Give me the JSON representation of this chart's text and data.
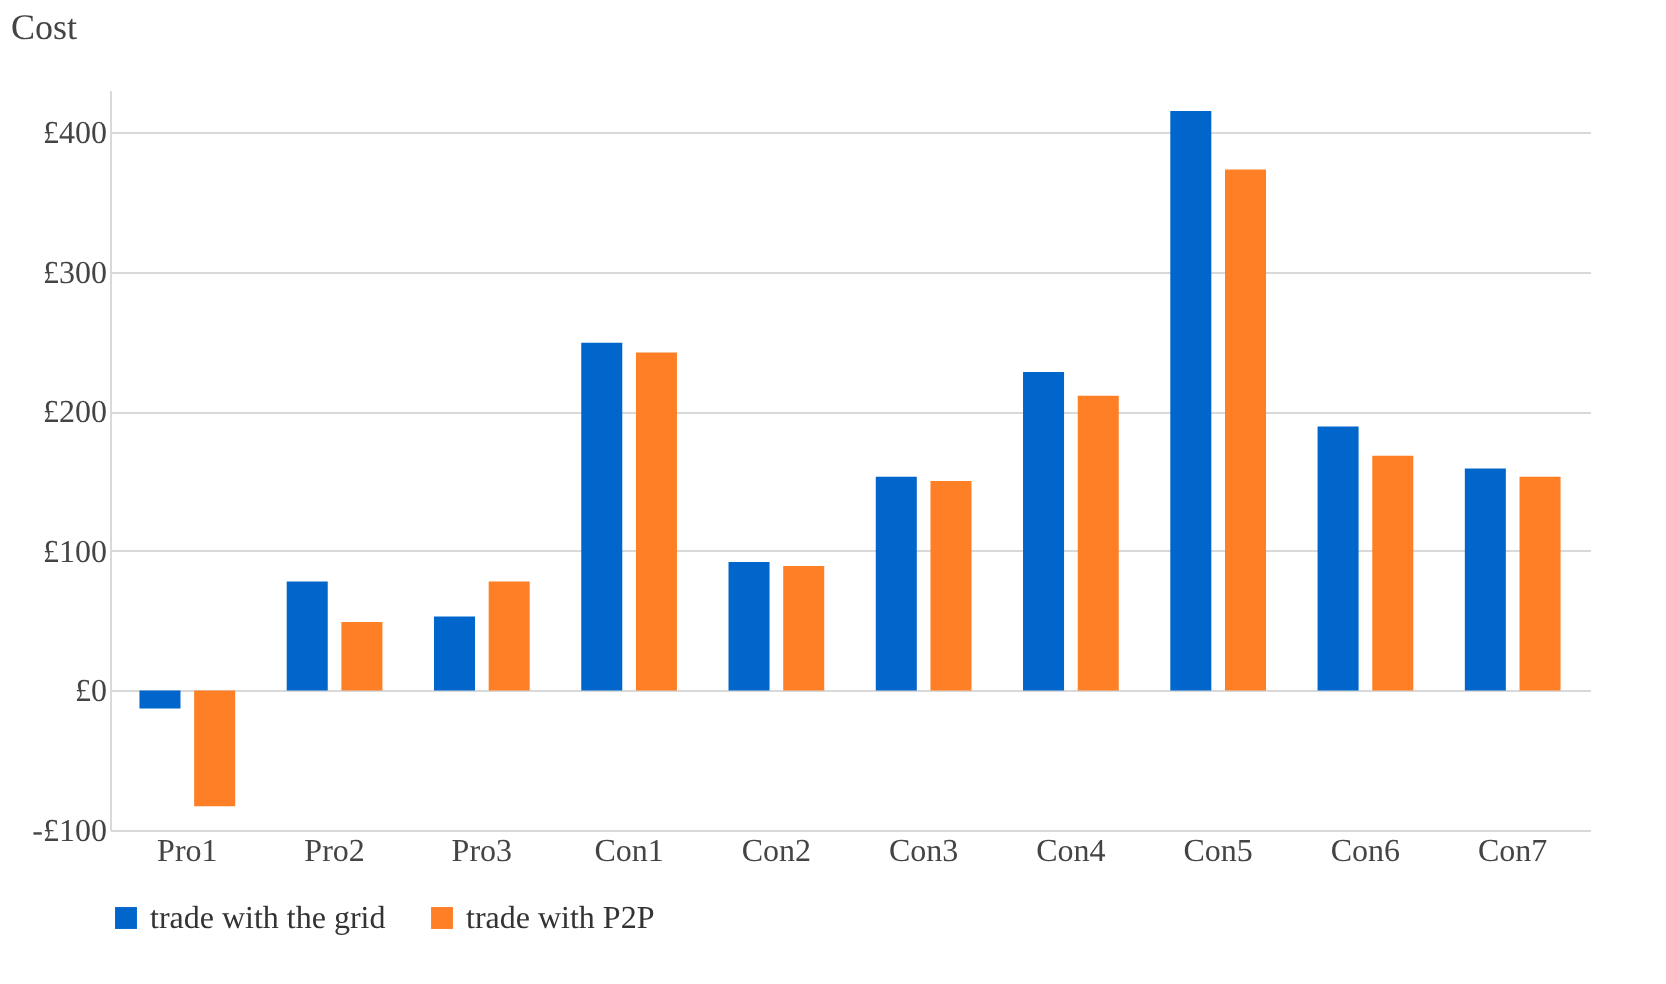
{
  "chart_data": {
    "type": "bar",
    "ylabel": "Cost",
    "categories": [
      "Pro1",
      "Pro2",
      "Pro3",
      "Con1",
      "Con2",
      "Con3",
      "Con4",
      "Con5",
      "Con6",
      "Con7"
    ],
    "series": [
      {
        "name": "trade with the grid",
        "color": "#0066cc",
        "values": [
          -13,
          78,
          53,
          249,
          92,
          153,
          228,
          415,
          189,
          159
        ]
      },
      {
        "name": "trade with P2P",
        "color": "#ff7f27",
        "values": [
          -83,
          49,
          78,
          242,
          89,
          150,
          211,
          373,
          168,
          153
        ]
      }
    ],
    "ylim": [
      -100,
      430
    ],
    "yticks": [
      {
        "value": -100,
        "label": "-£100"
      },
      {
        "value": 0,
        "label": "£0"
      },
      {
        "value": 100,
        "label": "£100"
      },
      {
        "value": 200,
        "label": "£200"
      },
      {
        "value": 300,
        "label": "£300"
      },
      {
        "value": 400,
        "label": "£400"
      }
    ],
    "grid": "y",
    "legend": "bottom"
  }
}
